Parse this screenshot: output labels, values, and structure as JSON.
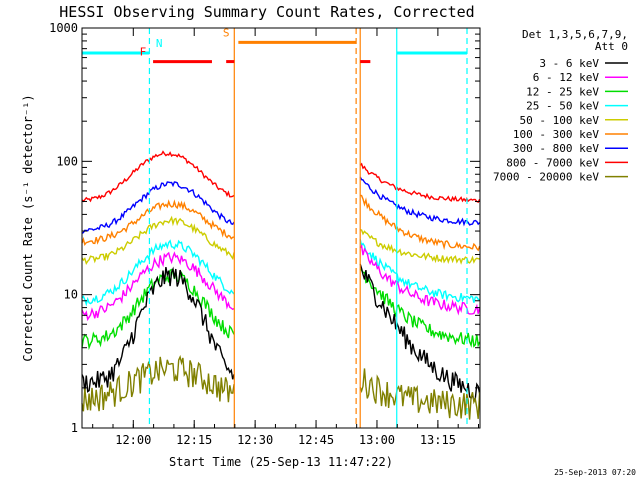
{
  "chart_data": {
    "type": "line",
    "title": "HESSI Observing Summary Count Rates, Corrected",
    "xlabel": "Start Time (25-Sep-13 11:47:22)",
    "ylabel": "Corrected Count Rate (s⁻¹ detector⁻¹)",
    "x_unit": "minutes after 11:47:22",
    "xlim": [
      0,
      98
    ],
    "ylim": [
      1,
      1000
    ],
    "yscale": "log",
    "x_ticks": [
      {
        "x": 12.63,
        "label": "12:00"
      },
      {
        "x": 27.63,
        "label": "12:15"
      },
      {
        "x": 42.63,
        "label": "12:30"
      },
      {
        "x": 57.63,
        "label": "12:45"
      },
      {
        "x": 72.63,
        "label": "13:00"
      },
      {
        "x": 87.63,
        "label": "13:15"
      }
    ],
    "y_ticks": [
      {
        "y": 1,
        "label": "1"
      },
      {
        "y": 10,
        "label": "10"
      },
      {
        "y": 100,
        "label": "100"
      },
      {
        "y": 1000,
        "label": "1000"
      }
    ],
    "legend": {
      "position": "right",
      "header": [
        "Det 1,3,5,6,7,9,",
        "Att 0"
      ],
      "entries": [
        {
          "label": "3 - 6 keV",
          "color": "#000000"
        },
        {
          "label": "6 - 12 keV",
          "color": "#ff00ff"
        },
        {
          "label": "12 - 25 keV",
          "color": "#00dd00"
        },
        {
          "label": "25 - 50 keV",
          "color": "#00ffff"
        },
        {
          "label": "50 - 100 keV",
          "color": "#cccc00"
        },
        {
          "label": "100 - 300 keV",
          "color": "#ff8000"
        },
        {
          "label": "300 - 800 keV",
          "color": "#0000ff"
        },
        {
          "label": "800 - 7000 keV",
          "color": "#ff0000"
        },
        {
          "label": "7000 - 20000 keV",
          "color": "#808000"
        }
      ]
    },
    "segments": [
      [
        0,
        37.5
      ],
      [
        68.5,
        98
      ]
    ],
    "series": [
      {
        "color": "#ff0000",
        "base": 50,
        "peak": 115,
        "peak_x": 21,
        "width": 10,
        "post": 95,
        "post_end": 50,
        "noise": 0.04
      },
      {
        "color": "#0000ff",
        "base": 30,
        "peak": 68,
        "peak_x": 22,
        "width": 10,
        "post": 75,
        "post_end": 34,
        "noise": 0.05
      },
      {
        "color": "#ff8000",
        "base": 25,
        "peak": 48,
        "peak_x": 22,
        "width": 10,
        "post": 55,
        "post_end": 22,
        "noise": 0.06
      },
      {
        "color": "#cccc00",
        "base": 18,
        "peak": 36,
        "peak_x": 22,
        "width": 10,
        "post": 30,
        "post_end": 18,
        "noise": 0.06
      },
      {
        "color": "#00ffff",
        "base": 9,
        "peak": 24,
        "peak_x": 22,
        "width": 10,
        "post": 25,
        "post_end": 9,
        "noise": 0.08
      },
      {
        "color": "#ff00ff",
        "base": 7,
        "peak": 19,
        "peak_x": 22,
        "width": 10,
        "post": 22,
        "post_end": 7.5,
        "noise": 0.1
      },
      {
        "color": "#00dd00",
        "base": 4.5,
        "peak": 14,
        "peak_x": 22,
        "width": 9,
        "post": 16,
        "post_end": 4.3,
        "noise": 0.12
      },
      {
        "color": "#000000",
        "base": 2.2,
        "peak": 14,
        "peak_x": 22,
        "width": 8,
        "post": 16,
        "post_end": 1.6,
        "noise": 0.18
      },
      {
        "color": "#808000",
        "base": 1.6,
        "peak": 2.8,
        "peak_x": 22,
        "width": 12,
        "post": 2.4,
        "post_end": 1.5,
        "noise": 0.25
      }
    ],
    "vlines": [
      {
        "x": 16.6,
        "color": "#00ffff",
        "style": "dashed"
      },
      {
        "x": 37.5,
        "color": "#ff8000",
        "style": "solid"
      },
      {
        "x": 67.5,
        "color": "#ff8000",
        "style": "dashed"
      },
      {
        "x": 68.5,
        "color": "#ff8000",
        "style": "solid"
      },
      {
        "x": 77.5,
        "color": "#00ffff",
        "style": "solid"
      },
      {
        "x": 94.8,
        "color": "#00ffff",
        "style": "dashed"
      }
    ],
    "flags": [
      {
        "label": "N",
        "color": "#00ffff",
        "y": 650,
        "ranges": [
          [
            0,
            16.6
          ],
          [
            77.5,
            94.8
          ]
        ],
        "label_x": 19
      },
      {
        "label": "S",
        "color": "#ff8000",
        "y": 780,
        "ranges": [
          [
            38.5,
            67.5
          ]
        ],
        "label_x": 35.5
      },
      {
        "label": "F",
        "color": "#ff0000",
        "y": 560,
        "ranges": [
          [
            17.5,
            32
          ],
          [
            35.5,
            37.5
          ],
          [
            68.5,
            71
          ]
        ],
        "label_x": 15
      }
    ]
  },
  "timestamp": "25-Sep-2013 07:20"
}
